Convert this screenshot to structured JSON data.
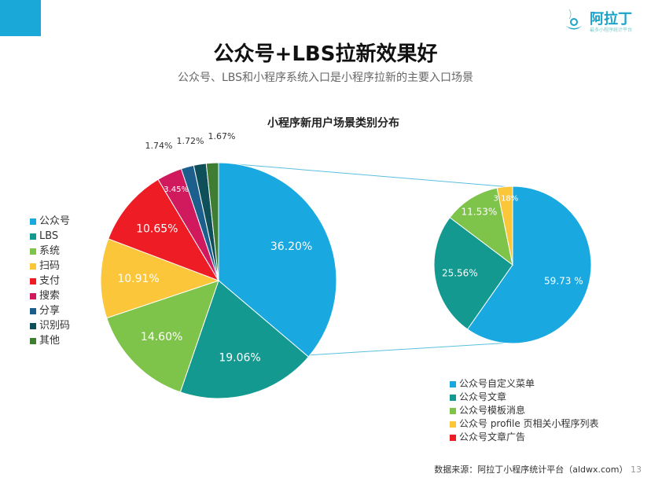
{
  "header": {
    "title": "公众号+LBS拉新效果好",
    "subtitle": "公众号、LBS和小程序系统入口是小程序拉新的主要入口场景",
    "logo_text": "阿拉丁",
    "logo_sub": "最多小程序统计平台"
  },
  "chart_data": [
    {
      "type": "pie",
      "title": "小程序新用户场景类别分布",
      "categories": [
        "公众号",
        "LBS",
        "系统",
        "扫码",
        "支付",
        "搜索",
        "分享",
        "识别码",
        "其他"
      ],
      "values": [
        36.2,
        19.06,
        14.6,
        10.91,
        10.65,
        3.45,
        1.74,
        1.72,
        1.67
      ],
      "labels": [
        "36.20%",
        "19.06%",
        "14.60%",
        "10.91%",
        "10.65%",
        "3.45%",
        "1.74%",
        "1.72%",
        "1.67%"
      ],
      "colors": [
        "#1aa8e0",
        "#13998f",
        "#7ec34a",
        "#fcc63b",
        "#ee1c25",
        "#d1195e",
        "#1c5e8c",
        "#0f4f5a",
        "#3e7d32"
      ],
      "legend_position": "left"
    },
    {
      "type": "pie",
      "title": "",
      "categories": [
        "公众号自定义菜单",
        "公众号文章",
        "公众号模板消息",
        "公众号 profile 页相关小程序列表",
        "公众号文章广告"
      ],
      "values": [
        59.73,
        25.56,
        11.53,
        3.18,
        0
      ],
      "labels": [
        "59.73 %",
        "25.56%",
        "11.53%",
        "3.18%",
        ""
      ],
      "colors": [
        "#1aa8e0",
        "#13998f",
        "#7ec34a",
        "#fcc63b",
        "#ee1c25"
      ],
      "legend_position": "bottom-right"
    }
  ],
  "footer": {
    "source": "数据来源：阿拉丁小程序统计平台（aldwx.com）",
    "page": "13"
  }
}
